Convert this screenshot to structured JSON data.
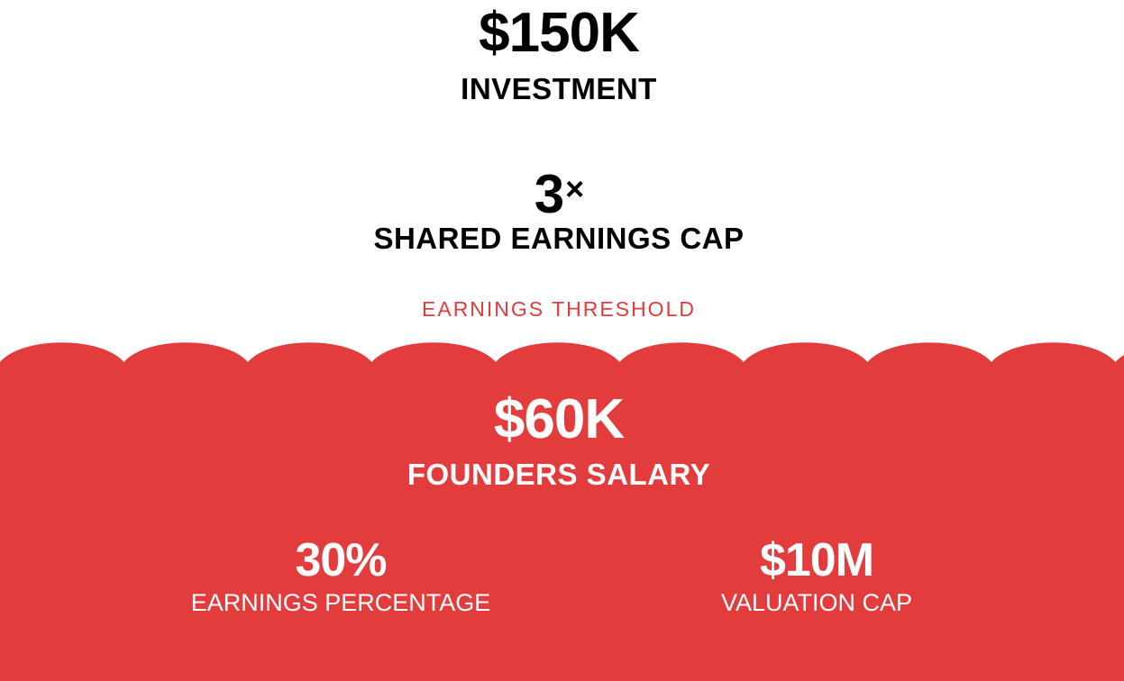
{
  "colors": {
    "accent_red": "#e23c3d",
    "text_dark": "#000000",
    "text_light": "#ffffff"
  },
  "top": {
    "investment": {
      "value": "$150K",
      "label": "INVESTMENT"
    },
    "earnings_cap": {
      "value": "3",
      "multiplier": "×",
      "label": "SHARED EARNINGS CAP"
    },
    "threshold_label": "EARNINGS THRESHOLD"
  },
  "panel": {
    "founders_salary": {
      "value": "$60K",
      "label": "FOUNDERS SALARY"
    },
    "earnings_percentage": {
      "value": "30%",
      "label": "EARNINGS PERCENTAGE"
    },
    "valuation_cap": {
      "value": "$10M",
      "label": "VALUATION CAP"
    }
  }
}
